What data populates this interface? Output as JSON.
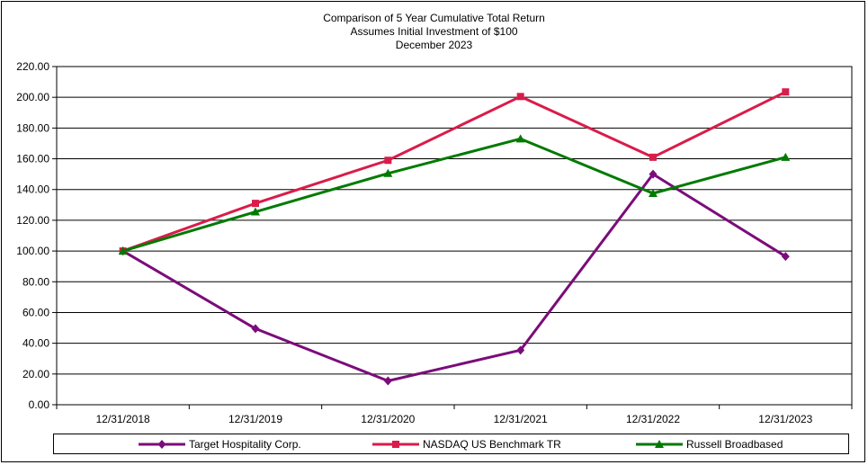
{
  "chart_data": {
    "type": "line",
    "title_lines": [
      "Comparison of 5 Year Cumulative Total Return",
      "Assumes Initial Investment of $100",
      "December 2023"
    ],
    "categories": [
      "12/31/2018",
      "12/31/2019",
      "12/31/2020",
      "12/31/2021",
      "12/31/2022",
      "12/31/2023"
    ],
    "y_ticks": [
      "0.00",
      "20.00",
      "40.00",
      "60.00",
      "80.00",
      "100.00",
      "120.00",
      "140.00",
      "160.00",
      "180.00",
      "200.00",
      "220.00"
    ],
    "ylim": [
      0,
      220
    ],
    "grid": "horizontal",
    "legend_position": "bottom",
    "series": [
      {
        "name": "Target Hospitality Corp.",
        "color": "#7b0c7b",
        "marker": "diamond",
        "values": [
          100,
          49.5,
          15.5,
          35.5,
          150,
          96.5
        ]
      },
      {
        "name": "NASDAQ US Benchmark TR",
        "color": "#d91c4a",
        "marker": "square",
        "values": [
          100,
          131,
          159,
          200.5,
          161,
          203.5
        ]
      },
      {
        "name": "Russell Broadbased",
        "color": "#007a00",
        "marker": "triangle",
        "values": [
          100,
          125.5,
          150.5,
          173,
          137.5,
          161
        ]
      }
    ]
  }
}
